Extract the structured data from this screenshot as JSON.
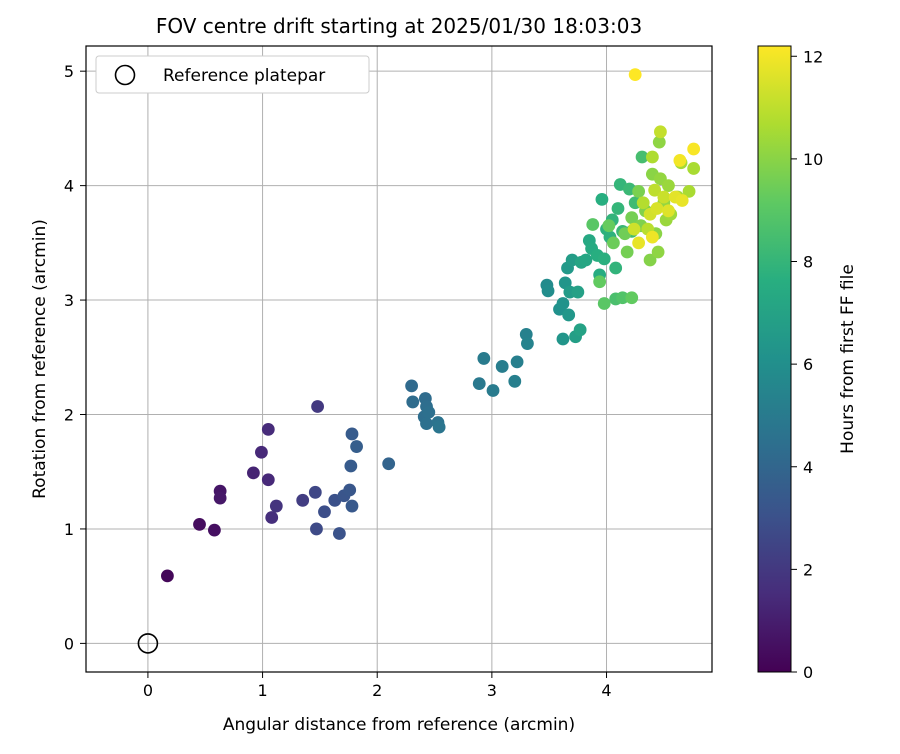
{
  "chart_data": {
    "type": "scatter",
    "title": "FOV centre drift starting at 2025/01/30 18:03:03",
    "xlabel": "Angular distance from reference (arcmin)",
    "ylabel": "Rotation from reference (arcmin)",
    "xlim": [
      -0.54,
      4.92
    ],
    "ylim": [
      -0.25,
      5.22
    ],
    "xticks": [
      0,
      1,
      2,
      3,
      4
    ],
    "yticks": [
      0,
      1,
      2,
      3,
      4,
      5
    ],
    "grid": true,
    "legend": {
      "placement": "upper-left",
      "entries": [
        "Reference platepar"
      ]
    },
    "reference_point": {
      "x": 0,
      "y": 0
    },
    "colorbar": {
      "label": "Hours from first FF file",
      "range": [
        0,
        12.2
      ],
      "ticks": [
        0,
        2,
        4,
        6,
        8,
        10,
        12
      ],
      "colormap": "viridis"
    },
    "points": [
      {
        "x": 0.17,
        "y": 0.59,
        "c": 0.2
      },
      {
        "x": 0.45,
        "y": 1.04,
        "c": 0.4
      },
      {
        "x": 0.58,
        "y": 0.99,
        "c": 0.5
      },
      {
        "x": 0.63,
        "y": 1.33,
        "c": 0.7
      },
      {
        "x": 0.63,
        "y": 1.27,
        "c": 0.8
      },
      {
        "x": 0.92,
        "y": 1.49,
        "c": 1.2
      },
      {
        "x": 0.99,
        "y": 1.67,
        "c": 1.4
      },
      {
        "x": 1.05,
        "y": 1.43,
        "c": 1.4
      },
      {
        "x": 1.05,
        "y": 1.87,
        "c": 1.5
      },
      {
        "x": 1.08,
        "y": 1.1,
        "c": 1.6
      },
      {
        "x": 1.12,
        "y": 1.2,
        "c": 1.8
      },
      {
        "x": 1.48,
        "y": 2.07,
        "c": 2.0
      },
      {
        "x": 1.35,
        "y": 1.25,
        "c": 2.2
      },
      {
        "x": 1.46,
        "y": 1.32,
        "c": 2.6
      },
      {
        "x": 1.47,
        "y": 1.0,
        "c": 2.7
      },
      {
        "x": 1.54,
        "y": 1.15,
        "c": 2.9
      },
      {
        "x": 1.63,
        "y": 1.25,
        "c": 3.0
      },
      {
        "x": 1.67,
        "y": 0.96,
        "c": 3.1
      },
      {
        "x": 1.71,
        "y": 1.29,
        "c": 3.2
      },
      {
        "x": 1.76,
        "y": 1.34,
        "c": 3.3
      },
      {
        "x": 1.78,
        "y": 1.2,
        "c": 3.4
      },
      {
        "x": 1.77,
        "y": 1.55,
        "c": 3.5
      },
      {
        "x": 1.78,
        "y": 1.83,
        "c": 3.5
      },
      {
        "x": 1.82,
        "y": 1.72,
        "c": 3.6
      },
      {
        "x": 2.1,
        "y": 1.57,
        "c": 3.9
      },
      {
        "x": 2.3,
        "y": 2.25,
        "c": 4.2
      },
      {
        "x": 2.31,
        "y": 2.11,
        "c": 4.3
      },
      {
        "x": 2.42,
        "y": 2.14,
        "c": 4.3
      },
      {
        "x": 2.43,
        "y": 2.07,
        "c": 4.4
      },
      {
        "x": 2.41,
        "y": 1.98,
        "c": 4.4
      },
      {
        "x": 2.43,
        "y": 1.92,
        "c": 4.5
      },
      {
        "x": 2.45,
        "y": 2.02,
        "c": 4.5
      },
      {
        "x": 2.53,
        "y": 1.93,
        "c": 4.6
      },
      {
        "x": 2.54,
        "y": 1.89,
        "c": 4.7
      },
      {
        "x": 2.89,
        "y": 2.27,
        "c": 4.9
      },
      {
        "x": 2.93,
        "y": 2.49,
        "c": 5.0
      },
      {
        "x": 3.01,
        "y": 2.21,
        "c": 5.0
      },
      {
        "x": 3.09,
        "y": 2.42,
        "c": 5.1
      },
      {
        "x": 3.2,
        "y": 2.29,
        "c": 5.2
      },
      {
        "x": 3.22,
        "y": 2.46,
        "c": 5.2
      },
      {
        "x": 3.3,
        "y": 2.7,
        "c": 5.3
      },
      {
        "x": 3.31,
        "y": 2.62,
        "c": 5.4
      },
      {
        "x": 3.48,
        "y": 3.13,
        "c": 5.8
      },
      {
        "x": 3.49,
        "y": 3.08,
        "c": 5.9
      },
      {
        "x": 3.59,
        "y": 2.92,
        "c": 6.1
      },
      {
        "x": 3.62,
        "y": 2.97,
        "c": 6.2
      },
      {
        "x": 3.64,
        "y": 3.15,
        "c": 6.3
      },
      {
        "x": 3.62,
        "y": 2.66,
        "c": 6.3
      },
      {
        "x": 3.67,
        "y": 2.87,
        "c": 6.4
      },
      {
        "x": 3.66,
        "y": 3.28,
        "c": 6.5
      },
      {
        "x": 3.68,
        "y": 3.07,
        "c": 6.6
      },
      {
        "x": 3.7,
        "y": 3.35,
        "c": 6.7
      },
      {
        "x": 3.73,
        "y": 2.68,
        "c": 6.8
      },
      {
        "x": 3.75,
        "y": 3.07,
        "c": 6.9
      },
      {
        "x": 3.77,
        "y": 2.74,
        "c": 7.0
      },
      {
        "x": 3.78,
        "y": 3.33,
        "c": 7.1
      },
      {
        "x": 3.82,
        "y": 3.35,
        "c": 7.2
      },
      {
        "x": 3.85,
        "y": 3.52,
        "c": 7.3
      },
      {
        "x": 3.87,
        "y": 3.45,
        "c": 7.4
      },
      {
        "x": 3.94,
        "y": 3.22,
        "c": 7.5
      },
      {
        "x": 3.92,
        "y": 3.39,
        "c": 7.6
      },
      {
        "x": 3.96,
        "y": 3.88,
        "c": 7.6
      },
      {
        "x": 3.98,
        "y": 3.36,
        "c": 7.7
      },
      {
        "x": 4.0,
        "y": 3.62,
        "c": 7.8
      },
      {
        "x": 4.03,
        "y": 3.55,
        "c": 7.8
      },
      {
        "x": 4.05,
        "y": 3.7,
        "c": 7.9
      },
      {
        "x": 4.08,
        "y": 3.28,
        "c": 7.9
      },
      {
        "x": 4.1,
        "y": 3.8,
        "c": 8.0
      },
      {
        "x": 4.12,
        "y": 4.01,
        "c": 8.0
      },
      {
        "x": 4.14,
        "y": 3.6,
        "c": 8.1
      },
      {
        "x": 4.2,
        "y": 3.97,
        "c": 8.2
      },
      {
        "x": 4.25,
        "y": 3.85,
        "c": 8.3
      },
      {
        "x": 4.22,
        "y": 3.6,
        "c": 8.4
      },
      {
        "x": 4.31,
        "y": 4.25,
        "c": 8.5
      },
      {
        "x": 4.08,
        "y": 3.01,
        "c": 8.6
      },
      {
        "x": 4.14,
        "y": 3.02,
        "c": 8.8
      },
      {
        "x": 3.98,
        "y": 2.97,
        "c": 9.0
      },
      {
        "x": 3.88,
        "y": 3.66,
        "c": 9.0
      },
      {
        "x": 3.94,
        "y": 3.16,
        "c": 9.2
      },
      {
        "x": 4.22,
        "y": 3.02,
        "c": 9.2
      },
      {
        "x": 4.02,
        "y": 3.65,
        "c": 9.3
      },
      {
        "x": 4.06,
        "y": 3.5,
        "c": 9.4
      },
      {
        "x": 4.16,
        "y": 3.58,
        "c": 9.5
      },
      {
        "x": 4.18,
        "y": 3.42,
        "c": 9.6
      },
      {
        "x": 4.22,
        "y": 3.72,
        "c": 9.6
      },
      {
        "x": 4.28,
        "y": 3.95,
        "c": 9.7
      },
      {
        "x": 4.3,
        "y": 3.65,
        "c": 9.8
      },
      {
        "x": 4.34,
        "y": 3.78,
        "c": 9.8
      },
      {
        "x": 4.38,
        "y": 3.35,
        "c": 9.9
      },
      {
        "x": 4.4,
        "y": 4.1,
        "c": 10.0
      },
      {
        "x": 4.43,
        "y": 3.58,
        "c": 10.0
      },
      {
        "x": 4.45,
        "y": 3.42,
        "c": 10.1
      },
      {
        "x": 4.46,
        "y": 4.38,
        "c": 10.1
      },
      {
        "x": 4.47,
        "y": 4.06,
        "c": 10.2
      },
      {
        "x": 4.5,
        "y": 3.85,
        "c": 10.2
      },
      {
        "x": 4.52,
        "y": 3.7,
        "c": 10.3
      },
      {
        "x": 4.54,
        "y": 4.0,
        "c": 10.3
      },
      {
        "x": 4.56,
        "y": 3.75,
        "c": 10.4
      },
      {
        "x": 4.62,
        "y": 3.9,
        "c": 10.5
      },
      {
        "x": 4.65,
        "y": 4.2,
        "c": 10.5
      },
      {
        "x": 4.72,
        "y": 3.95,
        "c": 10.6
      },
      {
        "x": 4.76,
        "y": 4.15,
        "c": 10.6
      },
      {
        "x": 4.4,
        "y": 4.25,
        "c": 10.7
      },
      {
        "x": 4.32,
        "y": 3.85,
        "c": 10.8
      },
      {
        "x": 4.36,
        "y": 3.62,
        "c": 10.9
      },
      {
        "x": 4.42,
        "y": 3.96,
        "c": 11.0
      },
      {
        "x": 4.47,
        "y": 4.47,
        "c": 11.1
      },
      {
        "x": 4.5,
        "y": 3.9,
        "c": 11.2
      },
      {
        "x": 4.24,
        "y": 3.62,
        "c": 11.3
      },
      {
        "x": 4.38,
        "y": 3.75,
        "c": 11.4
      },
      {
        "x": 4.44,
        "y": 3.8,
        "c": 11.5
      },
      {
        "x": 4.54,
        "y": 3.78,
        "c": 11.6
      },
      {
        "x": 4.6,
        "y": 3.9,
        "c": 11.7
      },
      {
        "x": 4.66,
        "y": 3.87,
        "c": 11.8
      },
      {
        "x": 4.28,
        "y": 3.5,
        "c": 11.8
      },
      {
        "x": 4.4,
        "y": 3.55,
        "c": 11.9
      },
      {
        "x": 4.64,
        "y": 4.22,
        "c": 12.0
      },
      {
        "x": 4.76,
        "y": 4.32,
        "c": 12.1
      },
      {
        "x": 4.25,
        "y": 4.97,
        "c": 12.2
      }
    ]
  }
}
